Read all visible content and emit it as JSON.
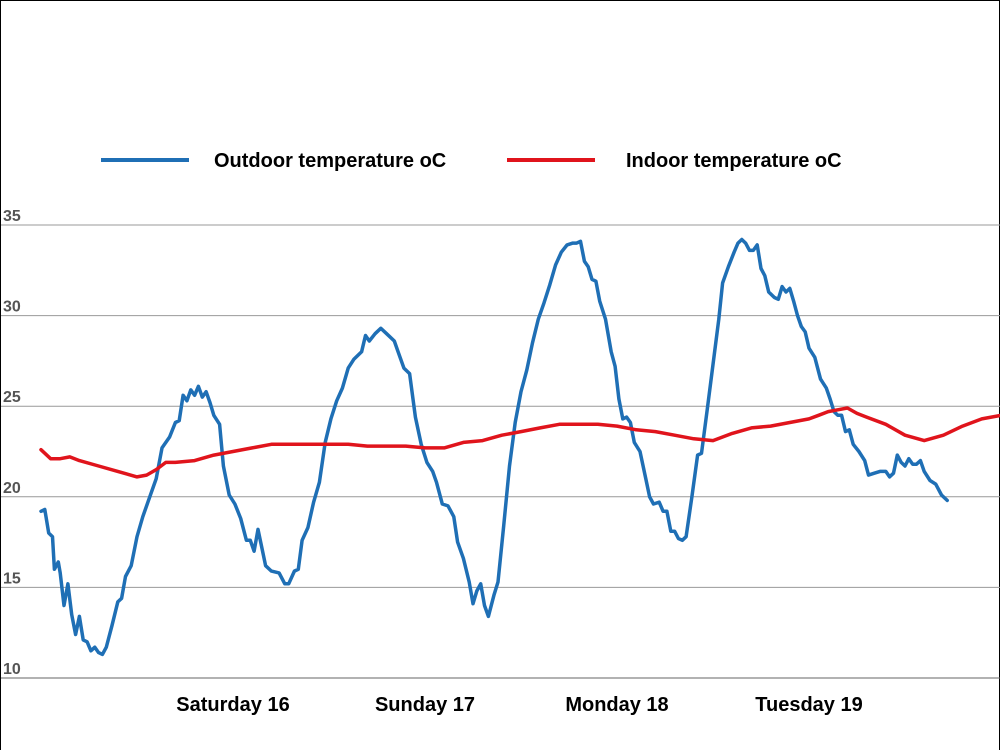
{
  "chart_data": {
    "type": "line",
    "title": "",
    "xlabel": "",
    "ylabel": "",
    "ylim": [
      10,
      35
    ],
    "yticks": [
      "10",
      "15",
      "20",
      "25",
      "30",
      "35"
    ],
    "xlim": [
      0,
      5
    ],
    "xtick_positions": [
      1,
      2,
      3,
      4
    ],
    "xtick_labels": [
      "Saturday 16",
      "Sunday 17",
      "Monday 18",
      "Tuesday 19"
    ],
    "grid": true,
    "legend_position": "top",
    "series": [
      {
        "name": "Outdoor temperature oC",
        "color": "#1f6fb5",
        "points": [
          [
            0.0,
            19.2
          ],
          [
            0.02,
            19.3
          ],
          [
            0.04,
            18.0
          ],
          [
            0.06,
            17.8
          ],
          [
            0.07,
            16.0
          ],
          [
            0.09,
            16.4
          ],
          [
            0.1,
            15.8
          ],
          [
            0.12,
            14.0
          ],
          [
            0.14,
            15.2
          ],
          [
            0.16,
            13.5
          ],
          [
            0.18,
            12.4
          ],
          [
            0.2,
            13.4
          ],
          [
            0.22,
            12.1
          ],
          [
            0.24,
            12.0
          ],
          [
            0.26,
            11.5
          ],
          [
            0.28,
            11.7
          ],
          [
            0.3,
            11.4
          ],
          [
            0.32,
            11.3
          ],
          [
            0.34,
            11.7
          ],
          [
            0.37,
            12.9
          ],
          [
            0.4,
            14.2
          ],
          [
            0.42,
            14.4
          ],
          [
            0.44,
            15.6
          ],
          [
            0.47,
            16.2
          ],
          [
            0.5,
            17.8
          ],
          [
            0.53,
            18.9
          ],
          [
            0.56,
            19.8
          ],
          [
            0.6,
            21.0
          ],
          [
            0.63,
            22.7
          ],
          [
            0.67,
            23.3
          ],
          [
            0.7,
            24.1
          ],
          [
            0.72,
            24.2
          ],
          [
            0.74,
            25.6
          ],
          [
            0.76,
            25.3
          ],
          [
            0.78,
            25.9
          ],
          [
            0.8,
            25.6
          ],
          [
            0.82,
            26.1
          ],
          [
            0.84,
            25.5
          ],
          [
            0.86,
            25.8
          ],
          [
            0.88,
            25.2
          ],
          [
            0.9,
            24.5
          ],
          [
            0.93,
            24.0
          ],
          [
            0.95,
            21.7
          ],
          [
            0.98,
            20.1
          ],
          [
            1.01,
            19.6
          ],
          [
            1.04,
            18.8
          ],
          [
            1.07,
            17.6
          ],
          [
            1.09,
            17.6
          ],
          [
            1.11,
            17.0
          ],
          [
            1.13,
            18.2
          ],
          [
            1.15,
            17.2
          ],
          [
            1.17,
            16.2
          ],
          [
            1.2,
            15.9
          ],
          [
            1.24,
            15.8
          ],
          [
            1.27,
            15.2
          ],
          [
            1.29,
            15.2
          ],
          [
            1.32,
            15.9
          ],
          [
            1.34,
            16.0
          ],
          [
            1.36,
            17.6
          ],
          [
            1.39,
            18.3
          ],
          [
            1.42,
            19.7
          ],
          [
            1.45,
            20.8
          ],
          [
            1.48,
            23.0
          ],
          [
            1.51,
            24.3
          ],
          [
            1.54,
            25.3
          ],
          [
            1.57,
            26.0
          ],
          [
            1.6,
            27.1
          ],
          [
            1.63,
            27.6
          ],
          [
            1.67,
            28.0
          ],
          [
            1.69,
            28.9
          ],
          [
            1.71,
            28.6
          ],
          [
            1.74,
            29.0
          ],
          [
            1.77,
            29.3
          ],
          [
            1.8,
            29.0
          ],
          [
            1.84,
            28.6
          ],
          [
            1.86,
            28.0
          ],
          [
            1.89,
            27.1
          ],
          [
            1.92,
            26.8
          ],
          [
            1.95,
            24.4
          ],
          [
            1.98,
            22.9
          ],
          [
            2.01,
            21.9
          ],
          [
            2.04,
            21.4
          ],
          [
            2.06,
            20.8
          ],
          [
            2.09,
            19.6
          ],
          [
            2.12,
            19.5
          ],
          [
            2.15,
            18.9
          ],
          [
            2.17,
            17.5
          ],
          [
            2.2,
            16.6
          ],
          [
            2.23,
            15.3
          ],
          [
            2.25,
            14.1
          ],
          [
            2.27,
            14.8
          ],
          [
            2.29,
            15.2
          ],
          [
            2.31,
            14.0
          ],
          [
            2.33,
            13.4
          ],
          [
            2.36,
            14.6
          ],
          [
            2.38,
            15.3
          ],
          [
            2.41,
            18.4
          ],
          [
            2.44,
            21.7
          ],
          [
            2.47,
            24.1
          ],
          [
            2.5,
            25.8
          ],
          [
            2.53,
            27.0
          ],
          [
            2.56,
            28.5
          ],
          [
            2.59,
            29.8
          ],
          [
            2.62,
            30.7
          ],
          [
            2.65,
            31.7
          ],
          [
            2.68,
            32.8
          ],
          [
            2.71,
            33.5
          ],
          [
            2.74,
            33.9
          ],
          [
            2.77,
            34.0
          ],
          [
            2.79,
            34.0
          ],
          [
            2.81,
            34.1
          ],
          [
            2.83,
            33.0
          ],
          [
            2.85,
            32.7
          ],
          [
            2.87,
            32.0
          ],
          [
            2.89,
            31.9
          ],
          [
            2.91,
            30.8
          ],
          [
            2.94,
            29.8
          ],
          [
            2.97,
            28.0
          ],
          [
            2.99,
            27.2
          ],
          [
            3.01,
            25.4
          ],
          [
            3.03,
            24.3
          ],
          [
            3.05,
            24.4
          ],
          [
            3.07,
            24.1
          ],
          [
            3.09,
            23.0
          ],
          [
            3.12,
            22.5
          ],
          [
            3.15,
            21.0
          ],
          [
            3.17,
            20.0
          ],
          [
            3.19,
            19.6
          ],
          [
            3.22,
            19.7
          ],
          [
            3.24,
            19.2
          ],
          [
            3.26,
            19.2
          ],
          [
            3.28,
            18.1
          ],
          [
            3.3,
            18.1
          ],
          [
            3.32,
            17.7
          ],
          [
            3.34,
            17.6
          ],
          [
            3.36,
            17.8
          ],
          [
            3.39,
            20.0
          ],
          [
            3.42,
            22.3
          ],
          [
            3.44,
            22.4
          ],
          [
            3.47,
            24.8
          ],
          [
            3.5,
            27.3
          ],
          [
            3.53,
            29.8
          ],
          [
            3.55,
            31.8
          ],
          [
            3.58,
            32.7
          ],
          [
            3.61,
            33.5
          ],
          [
            3.63,
            34.0
          ],
          [
            3.65,
            34.2
          ],
          [
            3.67,
            34.0
          ],
          [
            3.69,
            33.6
          ],
          [
            3.71,
            33.6
          ],
          [
            3.73,
            33.9
          ],
          [
            3.75,
            32.6
          ],
          [
            3.77,
            32.2
          ],
          [
            3.79,
            31.3
          ],
          [
            3.82,
            31.0
          ],
          [
            3.84,
            30.9
          ],
          [
            3.86,
            31.6
          ],
          [
            3.88,
            31.3
          ],
          [
            3.9,
            31.5
          ],
          [
            3.92,
            30.8
          ],
          [
            3.94,
            30.0
          ],
          [
            3.96,
            29.4
          ],
          [
            3.98,
            29.1
          ],
          [
            4.0,
            28.2
          ],
          [
            4.03,
            27.7
          ],
          [
            4.06,
            26.5
          ],
          [
            4.09,
            26.0
          ],
          [
            4.11,
            25.4
          ],
          [
            4.13,
            24.7
          ],
          [
            4.15,
            24.5
          ],
          [
            4.17,
            24.5
          ],
          [
            4.19,
            23.6
          ],
          [
            4.21,
            23.7
          ],
          [
            4.23,
            22.9
          ],
          [
            4.26,
            22.5
          ],
          [
            4.29,
            22.0
          ],
          [
            4.31,
            21.2
          ],
          [
            4.34,
            21.3
          ],
          [
            4.37,
            21.4
          ],
          [
            4.4,
            21.4
          ],
          [
            4.42,
            21.1
          ],
          [
            4.44,
            21.3
          ],
          [
            4.46,
            22.3
          ],
          [
            4.48,
            21.9
          ],
          [
            4.5,
            21.7
          ],
          [
            4.52,
            22.1
          ],
          [
            4.54,
            21.8
          ],
          [
            4.56,
            21.8
          ],
          [
            4.58,
            22.0
          ],
          [
            4.6,
            21.4
          ],
          [
            4.63,
            20.9
          ],
          [
            4.66,
            20.7
          ],
          [
            4.69,
            20.1
          ],
          [
            4.72,
            19.8
          ]
        ]
      },
      {
        "name": "Indoor temperature oC",
        "color": "#e0141c",
        "points": [
          [
            0.0,
            22.6
          ],
          [
            0.05,
            22.1
          ],
          [
            0.1,
            22.1
          ],
          [
            0.15,
            22.2
          ],
          [
            0.2,
            22.0
          ],
          [
            0.3,
            21.7
          ],
          [
            0.4,
            21.4
          ],
          [
            0.5,
            21.1
          ],
          [
            0.55,
            21.2
          ],
          [
            0.6,
            21.5
          ],
          [
            0.65,
            21.9
          ],
          [
            0.7,
            21.9
          ],
          [
            0.8,
            22.0
          ],
          [
            0.9,
            22.3
          ],
          [
            1.0,
            22.5
          ],
          [
            1.1,
            22.7
          ],
          [
            1.2,
            22.9
          ],
          [
            1.3,
            22.9
          ],
          [
            1.4,
            22.9
          ],
          [
            1.5,
            22.9
          ],
          [
            1.6,
            22.9
          ],
          [
            1.7,
            22.8
          ],
          [
            1.8,
            22.8
          ],
          [
            1.9,
            22.8
          ],
          [
            2.0,
            22.7
          ],
          [
            2.1,
            22.7
          ],
          [
            2.2,
            23.0
          ],
          [
            2.3,
            23.1
          ],
          [
            2.4,
            23.4
          ],
          [
            2.5,
            23.6
          ],
          [
            2.6,
            23.8
          ],
          [
            2.7,
            24.0
          ],
          [
            2.8,
            24.0
          ],
          [
            2.9,
            24.0
          ],
          [
            3.0,
            23.9
          ],
          [
            3.1,
            23.7
          ],
          [
            3.2,
            23.6
          ],
          [
            3.3,
            23.4
          ],
          [
            3.4,
            23.2
          ],
          [
            3.5,
            23.1
          ],
          [
            3.6,
            23.5
          ],
          [
            3.7,
            23.8
          ],
          [
            3.8,
            23.9
          ],
          [
            3.9,
            24.1
          ],
          [
            4.0,
            24.3
          ],
          [
            4.05,
            24.5
          ],
          [
            4.1,
            24.7
          ],
          [
            4.15,
            24.8
          ],
          [
            4.2,
            24.9
          ],
          [
            4.25,
            24.6
          ],
          [
            4.3,
            24.4
          ],
          [
            4.4,
            24.0
          ],
          [
            4.5,
            23.4
          ],
          [
            4.6,
            23.1
          ],
          [
            4.7,
            23.4
          ],
          [
            4.8,
            23.9
          ],
          [
            4.9,
            24.3
          ],
          [
            5.0,
            24.5
          ]
        ]
      }
    ]
  }
}
